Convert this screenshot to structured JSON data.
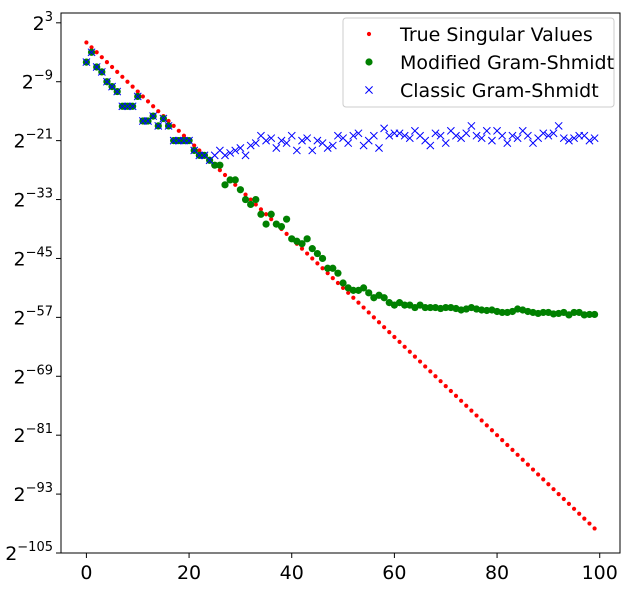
{
  "chart_data": {
    "type": "scatter",
    "title": "",
    "xlabel": "",
    "ylabel": "",
    "xlim": [
      -4.95,
      103.95
    ],
    "ylim_log2": [
      -105,
      5
    ],
    "y_scale": "log2",
    "grid": false,
    "legend_position": "top-right",
    "x_ticks": [
      0,
      20,
      40,
      60,
      80,
      100
    ],
    "x_tick_labels": [
      "0",
      "20",
      "40",
      "60",
      "80",
      "100"
    ],
    "y_ticks_log2": [
      3,
      -9,
      -21,
      -33,
      -45,
      -57,
      -69,
      -81,
      -93,
      -105
    ],
    "y_tick_labels": [
      {
        "base": "2",
        "exp": "3"
      },
      {
        "base": "2",
        "exp": "−9"
      },
      {
        "base": "2",
        "exp": "−21"
      },
      {
        "base": "2",
        "exp": "−33"
      },
      {
        "base": "2",
        "exp": "−45"
      },
      {
        "base": "2",
        "exp": "−57"
      },
      {
        "base": "2",
        "exp": "−69"
      },
      {
        "base": "2",
        "exp": "−81"
      },
      {
        "base": "2",
        "exp": "−93"
      },
      {
        "base": "2",
        "exp": "−105"
      }
    ],
    "series": [
      {
        "name": "True Singular Values",
        "marker": "dot",
        "color": "#ff0000",
        "x": [
          0,
          1,
          2,
          3,
          4,
          5,
          6,
          7,
          8,
          9,
          10,
          11,
          12,
          13,
          14,
          15,
          16,
          17,
          18,
          19,
          20,
          21,
          22,
          23,
          24,
          25,
          26,
          27,
          28,
          29,
          30,
          31,
          32,
          33,
          34,
          35,
          36,
          37,
          38,
          39,
          40,
          41,
          42,
          43,
          44,
          45,
          46,
          47,
          48,
          49,
          50,
          51,
          52,
          53,
          54,
          55,
          56,
          57,
          58,
          59,
          60,
          61,
          62,
          63,
          64,
          65,
          66,
          67,
          68,
          69,
          70,
          71,
          72,
          73,
          74,
          75,
          76,
          77,
          78,
          79,
          80,
          81,
          82,
          83,
          84,
          85,
          86,
          87,
          88,
          89,
          90,
          91,
          92,
          93,
          94,
          95,
          96,
          97,
          98,
          99
        ],
        "y_log2": [
          -1,
          -2,
          -3,
          -4,
          -5,
          -6,
          -7,
          -8,
          -9,
          -10,
          -11,
          -12,
          -13,
          -14,
          -15,
          -16,
          -17,
          -18,
          -19,
          -20,
          -21,
          -22,
          -23,
          -24,
          -25,
          -26,
          -27,
          -28,
          -29,
          -30,
          -31,
          -32,
          -33,
          -34,
          -35,
          -36,
          -37,
          -38,
          -39,
          -40,
          -41,
          -42,
          -43,
          -44,
          -45,
          -46,
          -47,
          -48,
          -49,
          -50,
          -51,
          -52,
          -53,
          -54,
          -55,
          -56,
          -57,
          -58,
          -59,
          -60,
          -61,
          -62,
          -63,
          -64,
          -65,
          -66,
          -67,
          -68,
          -69,
          -70,
          -71,
          -72,
          -73,
          -74,
          -75,
          -76,
          -77,
          -78,
          -79,
          -80,
          -81,
          -82,
          -83,
          -84,
          -85,
          -86,
          -87,
          -88,
          -89,
          -90,
          -91,
          -92,
          -93,
          -94,
          -95,
          -96,
          -97,
          -98,
          -99,
          -100
        ]
      },
      {
        "name": "Modified Gram-Shmidt",
        "marker": "circle",
        "color": "#008000",
        "x": [
          0,
          1,
          2,
          3,
          4,
          5,
          6,
          7,
          8,
          9,
          10,
          11,
          12,
          13,
          14,
          15,
          16,
          17,
          18,
          19,
          20,
          21,
          22,
          23,
          24,
          25,
          26,
          27,
          28,
          29,
          30,
          31,
          32,
          33,
          34,
          35,
          36,
          37,
          38,
          39,
          40,
          41,
          42,
          43,
          44,
          45,
          46,
          47,
          48,
          49,
          50,
          51,
          52,
          53,
          54,
          55,
          56,
          57,
          58,
          59,
          60,
          61,
          62,
          63,
          64,
          65,
          66,
          67,
          68,
          69,
          70,
          71,
          72,
          73,
          74,
          75,
          76,
          77,
          78,
          79,
          80,
          81,
          82,
          83,
          84,
          85,
          86,
          87,
          88,
          89,
          90,
          91,
          92,
          93,
          94,
          95,
          96,
          97,
          98,
          99
        ],
        "y_log2": [
          -5.0,
          -3.0,
          -6.0,
          -7.0,
          -9.0,
          -10.0,
          -11.0,
          -14.0,
          -14.0,
          -14.0,
          -12.0,
          -17.0,
          -17.0,
          -16.0,
          -18.0,
          -16.5,
          -18.0,
          -21.0,
          -21.0,
          -21.0,
          -21.0,
          -23.0,
          -24.0,
          -24.0,
          -25.0,
          -26.0,
          -26.0,
          -30.0,
          -29.0,
          -29.0,
          -31.0,
          -33.0,
          -34.0,
          -33.0,
          -36.0,
          -38.0,
          -36.0,
          -38.0,
          -38.5,
          -37.0,
          -41.0,
          -41.5,
          -42.0,
          -41.0,
          -43.0,
          -44.0,
          -45.0,
          -47.0,
          -47.0,
          -48.0,
          -50.0,
          -51.0,
          -51.5,
          -51.5,
          -51.0,
          -52.0,
          -53.0,
          -52.5,
          -53.0,
          -54.0,
          -54.5,
          -54.0,
          -54.5,
          -54.5,
          -55.0,
          -54.5,
          -55.0,
          -55.0,
          -55.0,
          -55.2,
          -55.0,
          -55.0,
          -55.2,
          -55.5,
          -55.3,
          -55.0,
          -55.3,
          -55.5,
          -55.6,
          -55.5,
          -55.8,
          -56.0,
          -56.0,
          -55.8,
          -55.3,
          -55.5,
          -55.8,
          -56.0,
          -56.2,
          -56.0,
          -56.0,
          -56.3,
          -56.2,
          -56.0,
          -56.5,
          -56.0,
          -56.0,
          -56.5,
          -56.4,
          -56.4
        ]
      },
      {
        "name": "Classic Gram-Shmidt",
        "marker": "x",
        "color": "#0000ff",
        "x": [
          0,
          1,
          2,
          3,
          4,
          5,
          6,
          7,
          8,
          9,
          10,
          11,
          12,
          13,
          14,
          15,
          16,
          17,
          18,
          19,
          20,
          21,
          22,
          23,
          24,
          25,
          26,
          27,
          28,
          29,
          30,
          31,
          32,
          33,
          34,
          35,
          36,
          37,
          38,
          39,
          40,
          41,
          42,
          43,
          44,
          45,
          46,
          47,
          48,
          49,
          50,
          51,
          52,
          53,
          54,
          55,
          56,
          57,
          58,
          59,
          60,
          61,
          62,
          63,
          64,
          65,
          66,
          67,
          68,
          69,
          70,
          71,
          72,
          73,
          74,
          75,
          76,
          77,
          78,
          79,
          80,
          81,
          82,
          83,
          84,
          85,
          86,
          87,
          88,
          89,
          90,
          91,
          92,
          93,
          94,
          95,
          96,
          97,
          98,
          99
        ],
        "y_log2": [
          -5.0,
          -3.0,
          -6.0,
          -7.0,
          -9.0,
          -10.0,
          -11.0,
          -14.0,
          -14.0,
          -14.0,
          -12.0,
          -17.0,
          -17.0,
          -16.0,
          -18.0,
          -16.5,
          -18.0,
          -21.0,
          -21.0,
          -21.0,
          -21.0,
          -23.0,
          -24.0,
          -24.0,
          -25.0,
          -24.0,
          -23.0,
          -24.0,
          -23.5,
          -23.0,
          -22.5,
          -24.0,
          -22.0,
          -21.5,
          -20.0,
          -21.0,
          -20.5,
          -22.5,
          -21.0,
          -21.5,
          -20.0,
          -23.0,
          -21.0,
          -20.5,
          -23.0,
          -21.0,
          -21.5,
          -22.5,
          -22.0,
          -20.0,
          -20.5,
          -21.5,
          -20.0,
          -19.5,
          -22.0,
          -21.0,
          -20.0,
          -22.5,
          -18.5,
          -20.0,
          -19.5,
          -19.5,
          -20.0,
          -20.5,
          -19.0,
          -20.0,
          -21.0,
          -22.0,
          -19.5,
          -20.0,
          -21.5,
          -19.0,
          -20.0,
          -20.5,
          -19.5,
          -18.0,
          -20.0,
          -20.5,
          -19.0,
          -21.0,
          -19.0,
          -20.0,
          -21.5,
          -20.0,
          -20.5,
          -19.0,
          -20.0,
          -21.5,
          -20.5,
          -19.5,
          -20.0,
          -19.5,
          -18.0,
          -20.5,
          -21.0,
          -20.5,
          -20.0,
          -20.0,
          -21.0,
          -20.5
        ]
      }
    ]
  }
}
